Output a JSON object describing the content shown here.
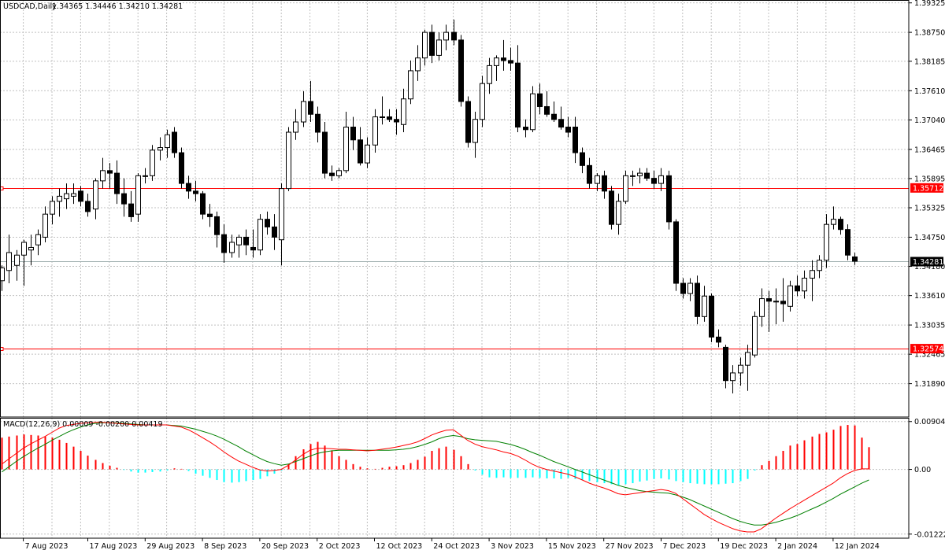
{
  "header": {
    "symbol_label": "USDCAD,Daily",
    "ohlc_label": "1.34365 1.34446 1.34210 1.34281"
  },
  "macd_panel": {
    "label": "MACD(12,26,9) 0.00009 -0.00200 0.00419"
  },
  "colors": {
    "background": "#ffffff",
    "grid": "#c0c0c0",
    "candle": "#000000",
    "hline": "#ff0000",
    "price_line": "#a0b0b0",
    "hist_positive": "#ff0000",
    "hist_negative": "#00ffff",
    "macd_line": "#ff0000",
    "signal_line": "#008000"
  },
  "chart_data": [
    {
      "type": "candlestick",
      "symbol": "USDCAD",
      "timeframe": "Daily",
      "ylim": [
        1.313,
        1.3932
      ],
      "price_ticks": [
        "1.39325",
        "1.38750",
        "1.38185",
        "1.37610",
        "1.37040",
        "1.36465",
        "1.35895",
        "1.35325",
        "1.34750",
        "1.34180",
        "1.33610",
        "1.33035",
        "1.32465",
        "1.31890"
      ],
      "x_ticks": [
        {
          "label": "7 Aug 2023",
          "x": 3
        },
        {
          "label": "17 Aug 2023",
          "x": 12
        },
        {
          "label": "29 Aug 2023",
          "x": 20
        },
        {
          "label": "8 Sep 2023",
          "x": 28
        },
        {
          "label": "20 Sep 2023",
          "x": 36
        },
        {
          "label": "2 Oct 2023",
          "x": 44
        },
        {
          "label": "12 Oct 2023",
          "x": 52
        },
        {
          "label": "24 Oct 2023",
          "x": 60
        },
        {
          "label": "3 Nov 2023",
          "x": 68
        },
        {
          "label": "15 Nov 2023",
          "x": 76
        },
        {
          "label": "27 Nov 2023",
          "x": 84
        },
        {
          "label": "7 Dec 2023",
          "x": 92
        },
        {
          "label": "19 Dec 2023",
          "x": 100
        },
        {
          "label": "2 Jan 2024",
          "x": 108
        },
        {
          "label": "12 Jan 2024",
          "x": 116
        }
      ],
      "horizontal_lines": [
        {
          "price": 1.35712,
          "label": "1.35712",
          "color": "#ff0000"
        },
        {
          "price": 1.32574,
          "label": "1.32574",
          "color": "#ff0000"
        }
      ],
      "current_price": {
        "price": 1.34281,
        "label": "1.34281"
      },
      "candles": [
        [
          1.339,
          1.342,
          1.337,
          1.3415
        ],
        [
          1.341,
          1.348,
          1.3385,
          1.3445
        ],
        [
          1.342,
          1.345,
          1.339,
          1.344
        ],
        [
          1.344,
          1.347,
          1.338,
          1.3465
        ],
        [
          1.345,
          1.348,
          1.342,
          1.3455
        ],
        [
          1.346,
          1.349,
          1.344,
          1.348
        ],
        [
          1.3475,
          1.3535,
          1.3465,
          1.352
        ],
        [
          1.352,
          1.3555,
          1.35,
          1.3545
        ],
        [
          1.3545,
          1.357,
          1.3515,
          1.3555
        ],
        [
          1.355,
          1.358,
          1.353,
          1.356
        ],
        [
          1.3555,
          1.358,
          1.354,
          1.356
        ],
        [
          1.3565,
          1.3575,
          1.3535,
          1.3545
        ],
        [
          1.3545,
          1.356,
          1.3515,
          1.3525
        ],
        [
          1.353,
          1.359,
          1.351,
          1.3585
        ],
        [
          1.3585,
          1.363,
          1.357,
          1.3605
        ],
        [
          1.3605,
          1.362,
          1.357,
          1.36
        ],
        [
          1.36,
          1.3625,
          1.354,
          1.356
        ],
        [
          1.356,
          1.359,
          1.3515,
          1.354
        ],
        [
          1.354,
          1.3565,
          1.3505,
          1.3515
        ],
        [
          1.352,
          1.36,
          1.3505,
          1.3595
        ],
        [
          1.3595,
          1.361,
          1.358,
          1.3595
        ],
        [
          1.3595,
          1.3655,
          1.3585,
          1.3645
        ],
        [
          1.3645,
          1.367,
          1.3625,
          1.365
        ],
        [
          1.365,
          1.3685,
          1.363,
          1.3675
        ],
        [
          1.368,
          1.369,
          1.363,
          1.364
        ],
        [
          1.364,
          1.365,
          1.357,
          1.358
        ],
        [
          1.358,
          1.3595,
          1.355,
          1.3565
        ],
        [
          1.3565,
          1.3585,
          1.3545,
          1.356
        ],
        [
          1.356,
          1.3565,
          1.351,
          1.352
        ],
        [
          1.352,
          1.354,
          1.3495,
          1.3515
        ],
        [
          1.3515,
          1.3525,
          1.3455,
          1.348
        ],
        [
          1.348,
          1.35,
          1.3425,
          1.3445
        ],
        [
          1.3445,
          1.348,
          1.3435,
          1.3465
        ],
        [
          1.346,
          1.348,
          1.3435,
          1.3475
        ],
        [
          1.3475,
          1.349,
          1.344,
          1.346
        ],
        [
          1.3455,
          1.349,
          1.3435,
          1.345
        ],
        [
          1.345,
          1.352,
          1.344,
          1.351
        ],
        [
          1.351,
          1.3525,
          1.348,
          1.3495
        ],
        [
          1.3495,
          1.352,
          1.345,
          1.3475
        ],
        [
          1.347,
          1.358,
          1.342,
          1.357
        ],
        [
          1.357,
          1.369,
          1.3565,
          1.368
        ],
        [
          1.368,
          1.3725,
          1.3665,
          1.37
        ],
        [
          1.37,
          1.376,
          1.369,
          1.374
        ],
        [
          1.374,
          1.378,
          1.37,
          1.3715
        ],
        [
          1.3715,
          1.373,
          1.366,
          1.368
        ],
        [
          1.368,
          1.37,
          1.359,
          1.36
        ],
        [
          1.36,
          1.3615,
          1.3585,
          1.3595
        ],
        [
          1.3595,
          1.361,
          1.359,
          1.3605
        ],
        [
          1.3605,
          1.372,
          1.36,
          1.369
        ],
        [
          1.369,
          1.371,
          1.3645,
          1.3665
        ],
        [
          1.3665,
          1.369,
          1.3615,
          1.362
        ],
        [
          1.362,
          1.367,
          1.361,
          1.3655
        ],
        [
          1.3655,
          1.3725,
          1.364,
          1.371
        ],
        [
          1.371,
          1.375,
          1.3695,
          1.371
        ],
        [
          1.371,
          1.3725,
          1.37,
          1.3705
        ],
        [
          1.3705,
          1.3725,
          1.3675,
          1.37
        ],
        [
          1.3695,
          1.3765,
          1.368,
          1.3745
        ],
        [
          1.3745,
          1.382,
          1.3735,
          1.38
        ],
        [
          1.38,
          1.385,
          1.378,
          1.3825
        ],
        [
          1.3825,
          1.388,
          1.381,
          1.3875
        ],
        [
          1.3875,
          1.389,
          1.3815,
          1.383
        ],
        [
          1.383,
          1.3875,
          1.382,
          1.386
        ],
        [
          1.386,
          1.389,
          1.384,
          1.3875
        ],
        [
          1.3875,
          1.39,
          1.385,
          1.386
        ],
        [
          1.386,
          1.387,
          1.373,
          1.374
        ],
        [
          1.374,
          1.375,
          1.365,
          1.366
        ],
        [
          1.366,
          1.372,
          1.363,
          1.3705
        ],
        [
          1.3705,
          1.379,
          1.369,
          1.3775
        ],
        [
          1.3775,
          1.3825,
          1.3755,
          1.381
        ],
        [
          1.381,
          1.383,
          1.378,
          1.3825
        ],
        [
          1.3825,
          1.386,
          1.38,
          1.382
        ],
        [
          1.382,
          1.3845,
          1.38,
          1.3815
        ],
        [
          1.3815,
          1.385,
          1.368,
          1.369
        ],
        [
          1.369,
          1.3705,
          1.367,
          1.3685
        ],
        [
          1.3685,
          1.377,
          1.368,
          1.3755
        ],
        [
          1.3755,
          1.3775,
          1.3715,
          1.373
        ],
        [
          1.373,
          1.376,
          1.371,
          1.3715
        ],
        [
          1.3715,
          1.374,
          1.37,
          1.3705
        ],
        [
          1.3705,
          1.373,
          1.3685,
          1.369
        ],
        [
          1.369,
          1.371,
          1.367,
          1.368
        ],
        [
          1.369,
          1.371,
          1.362,
          1.364
        ],
        [
          1.364,
          1.365,
          1.36,
          1.3615
        ],
        [
          1.3615,
          1.363,
          1.357,
          1.358
        ],
        [
          1.358,
          1.36,
          1.3565,
          1.3595
        ],
        [
          1.3595,
          1.3605,
          1.355,
          1.3565
        ],
        [
          1.3565,
          1.3575,
          1.349,
          1.35
        ],
        [
          1.35,
          1.356,
          1.348,
          1.3545
        ],
        [
          1.3545,
          1.3605,
          1.354,
          1.3595
        ],
        [
          1.3595,
          1.3605,
          1.3575,
          1.3595
        ],
        [
          1.3595,
          1.361,
          1.358,
          1.36
        ],
        [
          1.36,
          1.361,
          1.3585,
          1.359
        ],
        [
          1.359,
          1.3605,
          1.357,
          1.358
        ],
        [
          1.358,
          1.361,
          1.3565,
          1.3595
        ],
        [
          1.3595,
          1.3605,
          1.349,
          1.3505
        ],
        [
          1.3505,
          1.351,
          1.337,
          1.3385
        ],
        [
          1.3385,
          1.3395,
          1.3355,
          1.3365
        ],
        [
          1.3365,
          1.3395,
          1.335,
          1.3385
        ],
        [
          1.3385,
          1.34,
          1.3305,
          1.332
        ],
        [
          1.332,
          1.338,
          1.331,
          1.336
        ],
        [
          1.336,
          1.3365,
          1.327,
          1.328
        ],
        [
          1.328,
          1.3295,
          1.326,
          1.327
        ],
        [
          1.326,
          1.3265,
          1.318,
          1.3195
        ],
        [
          1.3195,
          1.3225,
          1.317,
          1.321
        ],
        [
          1.321,
          1.324,
          1.3185,
          1.3225
        ],
        [
          1.3225,
          1.3265,
          1.3175,
          1.325
        ],
        [
          1.3245,
          1.333,
          1.324,
          1.332
        ],
        [
          1.332,
          1.3375,
          1.33,
          1.3355
        ],
        [
          1.3355,
          1.337,
          1.329,
          1.335
        ],
        [
          1.335,
          1.3375,
          1.3305,
          1.335
        ],
        [
          1.335,
          1.3395,
          1.331,
          1.3345
        ],
        [
          1.334,
          1.339,
          1.333,
          1.338
        ],
        [
          1.338,
          1.34,
          1.336,
          1.337
        ],
        [
          1.337,
          1.341,
          1.3355,
          1.3395
        ],
        [
          1.3395,
          1.343,
          1.335,
          1.341
        ],
        [
          1.341,
          1.344,
          1.3395,
          1.343
        ],
        [
          1.343,
          1.352,
          1.3415,
          1.35
        ],
        [
          1.35,
          1.3535,
          1.349,
          1.351
        ],
        [
          1.351,
          1.3515,
          1.348,
          1.349
        ],
        [
          1.349,
          1.35,
          1.343,
          1.344
        ],
        [
          1.34365,
          1.34446,
          1.3421,
          1.34281
        ]
      ]
    },
    {
      "type": "macd",
      "label": "MACD(12,26,9) 0.00009 -0.00200 0.00419",
      "ylim": [
        -0.0124,
        0.00915
      ],
      "y_ticks": [
        "0.00904",
        "0.00",
        "-0.01222"
      ],
      "hist": [
        0.006,
        0.0062,
        0.0064,
        0.0066,
        0.0065,
        0.0064,
        0.0062,
        0.006,
        0.0056,
        0.005,
        0.0043,
        0.0035,
        0.0026,
        0.0018,
        0.0012,
        0.0007,
        0.0003,
        -0.0001,
        -0.0004,
        -0.0006,
        -0.0006,
        -0.0005,
        -0.0004,
        -0.0002,
        0.0002,
        0.0001,
        -0.0003,
        -0.0008,
        -0.0012,
        -0.0016,
        -0.002,
        -0.0024,
        -0.0025,
        -0.0024,
        -0.0022,
        -0.002,
        -0.0018,
        -0.0013,
        -0.0008,
        -0.0002,
        0.001,
        0.0025,
        0.0038,
        0.0048,
        0.0052,
        0.0045,
        0.0036,
        0.0025,
        0.0018,
        0.001,
        0.0005,
        0.0002,
        0.0001,
        0.0003,
        0.0005,
        0.0006,
        0.0008,
        0.0012,
        0.0018,
        0.0024,
        0.0035,
        0.004,
        0.0043,
        0.0037,
        0.0025,
        0.001,
        -0.0002,
        -0.001,
        -0.0015,
        -0.0016,
        -0.0015,
        -0.0016,
        -0.0016,
        -0.0016,
        -0.0015,
        -0.0016,
        -0.0017,
        -0.0017,
        -0.0018,
        -0.0016,
        -0.0018,
        -0.002,
        -0.0022,
        -0.0024,
        -0.0026,
        -0.0028,
        -0.003,
        -0.0028,
        -0.0026,
        -0.0023,
        -0.0021,
        -0.0018,
        -0.0017,
        -0.0019,
        -0.0022,
        -0.0024,
        -0.0026,
        -0.0027,
        -0.0028,
        -0.0028,
        -0.0028,
        -0.0027,
        -0.0026,
        -0.0022,
        -0.0018,
        -0.0002,
        0.0008,
        0.0016,
        0.0025,
        0.0035,
        0.0045,
        0.0048,
        0.0055,
        0.0062,
        0.0067,
        0.007,
        0.0075,
        0.0082,
        0.0084,
        0.0083,
        0.006,
        0.0042
      ],
      "macd": [
        0.001,
        0.002,
        0.003,
        0.004,
        0.0048,
        0.0055,
        0.0062,
        0.007,
        0.0078,
        0.0083,
        0.0085,
        0.0087,
        0.0088,
        0.0089,
        0.0089,
        0.0088,
        0.0087,
        0.0086,
        0.0085,
        0.0084,
        0.0084,
        0.0084,
        0.0084,
        0.0084,
        0.0082,
        0.008,
        0.0075,
        0.0068,
        0.006,
        0.0052,
        0.0043,
        0.0033,
        0.0024,
        0.0016,
        0.001,
        0.0004,
        -0.0001,
        -0.0003,
        -0.0002,
        0.0,
        0.0008,
        0.0018,
        0.0028,
        0.0036,
        0.004,
        0.004,
        0.0039,
        0.0038,
        0.0038,
        0.0037,
        0.0036,
        0.0035,
        0.0036,
        0.0038,
        0.004,
        0.0042,
        0.0045,
        0.0048,
        0.0052,
        0.0058,
        0.0065,
        0.007,
        0.0074,
        0.0075,
        0.0065,
        0.0055,
        0.0048,
        0.0043,
        0.004,
        0.0037,
        0.0033,
        0.003,
        0.0025,
        0.0018,
        0.001,
        0.0004,
        0.0,
        -0.0003,
        -0.0006,
        -0.0009,
        -0.0014,
        -0.002,
        -0.0026,
        -0.0031,
        -0.0035,
        -0.004,
        -0.0046,
        -0.0048,
        -0.0046,
        -0.0044,
        -0.0042,
        -0.004,
        -0.0038,
        -0.004,
        -0.0045,
        -0.0055,
        -0.0065,
        -0.0075,
        -0.0085,
        -0.0093,
        -0.01,
        -0.0106,
        -0.0112,
        -0.0116,
        -0.0118,
        -0.0118,
        -0.0112,
        -0.0102,
        -0.0092,
        -0.0083,
        -0.0074,
        -0.0066,
        -0.0058,
        -0.005,
        -0.0042,
        -0.0034,
        -0.0026,
        -0.0016,
        -0.0008,
        -0.0002,
        0.0001,
        0.0001
      ],
      "signal": [
        -0.0005,
        0.0005,
        0.0015,
        0.0024,
        0.0032,
        0.004,
        0.0047,
        0.0055,
        0.0062,
        0.0069,
        0.0075,
        0.008,
        0.0084,
        0.0087,
        0.0088,
        0.0088,
        0.0088,
        0.0087,
        0.0086,
        0.0085,
        0.0084,
        0.0084,
        0.0084,
        0.0084,
        0.0083,
        0.0082,
        0.0079,
        0.0076,
        0.0072,
        0.0068,
        0.0063,
        0.0057,
        0.005,
        0.0043,
        0.0035,
        0.0028,
        0.0021,
        0.0015,
        0.0011,
        0.0008,
        0.001,
        0.0015,
        0.002,
        0.0025,
        0.003,
        0.0033,
        0.0035,
        0.0036,
        0.0036,
        0.0036,
        0.0036,
        0.0036,
        0.0036,
        0.0036,
        0.0036,
        0.0037,
        0.0038,
        0.004,
        0.0043,
        0.0047,
        0.0052,
        0.0058,
        0.0062,
        0.0064,
        0.0062,
        0.0058,
        0.0056,
        0.0055,
        0.0054,
        0.0053,
        0.005,
        0.0047,
        0.0043,
        0.0038,
        0.0032,
        0.0027,
        0.0021,
        0.0015,
        0.001,
        0.0005,
        0.0,
        -0.0005,
        -0.001,
        -0.0015,
        -0.002,
        -0.0025,
        -0.003,
        -0.0034,
        -0.0037,
        -0.004,
        -0.0042,
        -0.0043,
        -0.0044,
        -0.0045,
        -0.0048,
        -0.0052,
        -0.0057,
        -0.0063,
        -0.0069,
        -0.0075,
        -0.0081,
        -0.0087,
        -0.0093,
        -0.0098,
        -0.0102,
        -0.0105,
        -0.0105,
        -0.0103,
        -0.01,
        -0.0096,
        -0.0092,
        -0.0087,
        -0.0081,
        -0.0075,
        -0.0069,
        -0.0062,
        -0.0055,
        -0.0047,
        -0.004,
        -0.0033,
        -0.0026,
        -0.002
      ]
    }
  ]
}
